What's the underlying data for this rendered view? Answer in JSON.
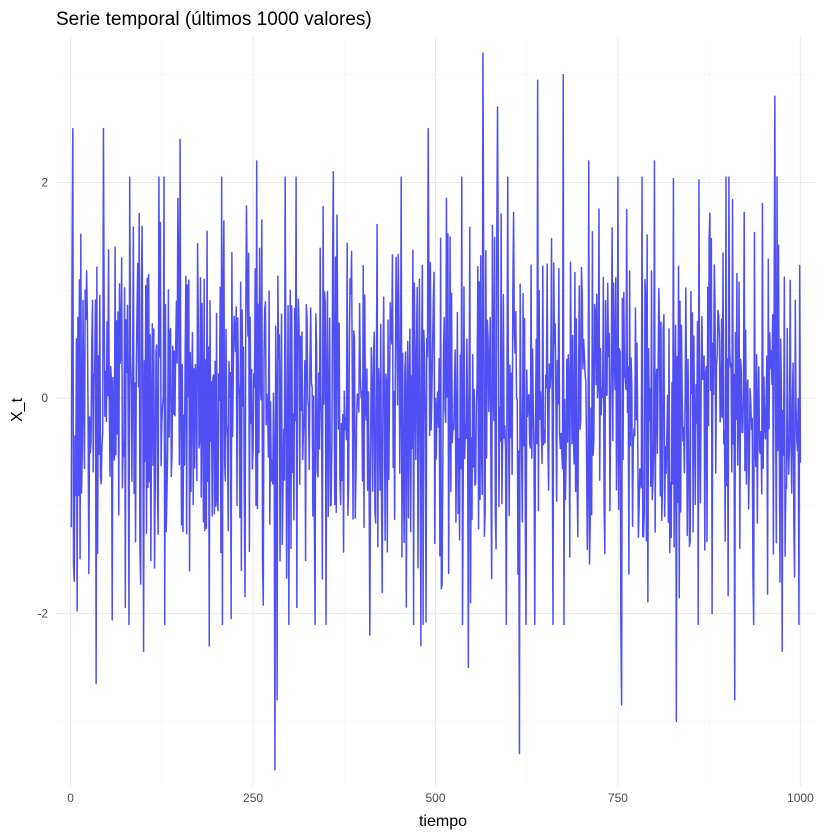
{
  "chart_data": {
    "type": "line",
    "title": "Serie temporal (últimos 1000 valores)",
    "xlabel": "tiempo",
    "ylabel": "X_t",
    "xlim": [
      -20,
      1020
    ],
    "ylim": [
      -3.6,
      3.35
    ],
    "x_ticks": [
      0,
      250,
      500,
      750,
      1000
    ],
    "x_tick_labels": [
      "0",
      "250",
      "500",
      "750",
      "1000"
    ],
    "y_ticks": [
      -2,
      0,
      2
    ],
    "y_tick_labels": [
      "-2",
      "0",
      "2"
    ],
    "x_minor_ticks": [
      125,
      375,
      625,
      875
    ],
    "y_minor_ticks": [
      -3,
      -1,
      1,
      3
    ],
    "grid": true,
    "series": [
      {
        "color": "#4040f2",
        "n_points": 1000,
        "x_start": 1,
        "x_end": 1000,
        "y_range": [
          -3.45,
          3.2
        ],
        "values_sampled": [
          {
            "x": 1,
            "y": -1.2
          },
          {
            "x": 3,
            "y": 2.5
          },
          {
            "x": 5,
            "y": -1.7
          },
          {
            "x": 20,
            "y": 1.0
          },
          {
            "x": 35,
            "y": -2.65
          },
          {
            "x": 45,
            "y": 2.5
          },
          {
            "x": 70,
            "y": 1.3
          },
          {
            "x": 100,
            "y": -2.35
          },
          {
            "x": 150,
            "y": 2.4
          },
          {
            "x": 190,
            "y": -2.3
          },
          {
            "x": 255,
            "y": 2.2
          },
          {
            "x": 280,
            "y": -3.45
          },
          {
            "x": 283,
            "y": -2.8
          },
          {
            "x": 360,
            "y": 2.1
          },
          {
            "x": 410,
            "y": -2.2
          },
          {
            "x": 480,
            "y": -2.3
          },
          {
            "x": 490,
            "y": 2.5
          },
          {
            "x": 545,
            "y": -2.5
          },
          {
            "x": 565,
            "y": 3.2
          },
          {
            "x": 585,
            "y": 2.7
          },
          {
            "x": 615,
            "y": -3.3
          },
          {
            "x": 640,
            "y": 2.95
          },
          {
            "x": 675,
            "y": 3.0
          },
          {
            "x": 710,
            "y": 2.2
          },
          {
            "x": 755,
            "y": -2.85
          },
          {
            "x": 800,
            "y": 2.2
          },
          {
            "x": 830,
            "y": -3.0
          },
          {
            "x": 875,
            "y": 1.5
          },
          {
            "x": 910,
            "y": -2.8
          },
          {
            "x": 965,
            "y": 2.8
          },
          {
            "x": 975,
            "y": -2.35
          },
          {
            "x": 1000,
            "y": -0.6
          }
        ]
      }
    ]
  }
}
